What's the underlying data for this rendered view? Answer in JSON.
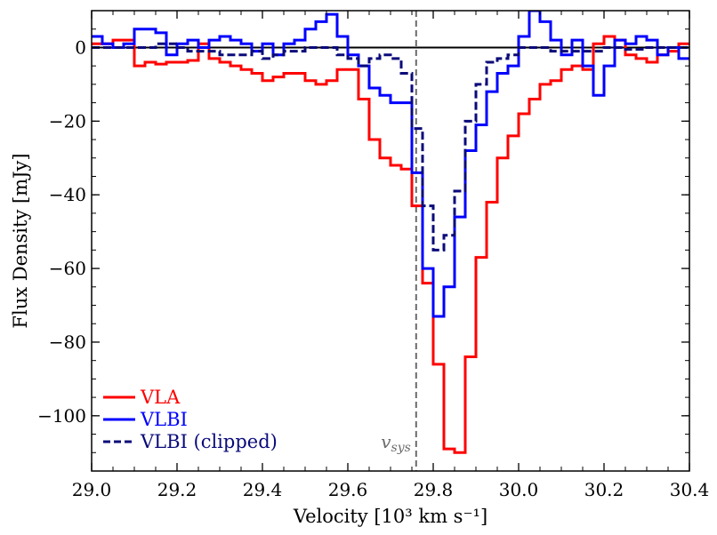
{
  "chart_data": {
    "type": "line",
    "style": "step",
    "title": "",
    "xlabel": "Velocity [10³ km s⁻¹]",
    "ylabel": "Flux Density [mJy]",
    "xlim": [
      29.0,
      30.4
    ],
    "ylim": [
      -115,
      10
    ],
    "xticks": [
      29.0,
      29.2,
      29.4,
      29.6,
      29.8,
      30.0,
      30.2,
      30.4
    ],
    "xtick_labels": [
      "29.0",
      "29.2",
      "29.4",
      "29.6",
      "29.8",
      "30.0",
      "30.2",
      "30.4"
    ],
    "yticks": [
      0,
      -20,
      -40,
      -60,
      -80,
      -100
    ],
    "ytick_labels": [
      "0",
      "−20",
      "−40",
      "−60",
      "−80",
      "−100"
    ],
    "zero_line": 0,
    "vsys": {
      "x": 29.76,
      "label": "v",
      "subscript": "sys",
      "color": "#6b6b6b"
    },
    "legend_position": "lower-left",
    "series": [
      {
        "name": "VLA",
        "color": "#ff0000",
        "dash": "solid",
        "edges": [
          29.0,
          29.05,
          29.1,
          29.125,
          29.15,
          29.175,
          29.2,
          29.225,
          29.25,
          29.275,
          29.3,
          29.325,
          29.35,
          29.375,
          29.4,
          29.425,
          29.45,
          29.475,
          29.5,
          29.525,
          29.55,
          29.575,
          29.6,
          29.625,
          29.65,
          29.675,
          29.7,
          29.725,
          29.75,
          29.775,
          29.8,
          29.825,
          29.85,
          29.875,
          29.9,
          29.925,
          29.95,
          29.975,
          30.0,
          30.025,
          30.05,
          30.075,
          30.1,
          30.125,
          30.15,
          30.175,
          30.2,
          30.225,
          30.25,
          30.275,
          30.3,
          30.325,
          30.35,
          30.375,
          30.4
        ],
        "values": [
          1,
          2,
          -5,
          -4,
          -4.5,
          -4,
          -4,
          -3.5,
          1,
          -3,
          -4,
          -5,
          -6,
          -7,
          -9,
          -8,
          -7,
          -7,
          -9,
          -10,
          -9,
          -6,
          -6,
          -14,
          -25,
          -30,
          -32,
          -33,
          -43,
          -64,
          -86,
          -109,
          -110,
          -84,
          -57,
          -42,
          -30,
          -24,
          -18,
          -14,
          -10,
          -9,
          -6,
          -5,
          -6,
          1,
          3,
          2,
          -2,
          -3,
          -4,
          -2,
          -1,
          1
        ]
      },
      {
        "name": "VLBI",
        "color": "#0000ff",
        "dash": "solid",
        "edges": [
          29.0,
          29.025,
          29.05,
          29.075,
          29.1,
          29.15,
          29.175,
          29.2,
          29.225,
          29.25,
          29.275,
          29.3,
          29.325,
          29.35,
          29.375,
          29.4,
          29.425,
          29.45,
          29.475,
          29.5,
          29.525,
          29.55,
          29.575,
          29.6,
          29.625,
          29.65,
          29.675,
          29.7,
          29.725,
          29.75,
          29.775,
          29.8,
          29.825,
          29.85,
          29.875,
          29.9,
          29.925,
          29.95,
          29.975,
          30.0,
          30.025,
          30.05,
          30.075,
          30.1,
          30.125,
          30.15,
          30.175,
          30.2,
          30.225,
          30.25,
          30.275,
          30.3,
          30.325,
          30.35,
          30.375,
          30.4
        ],
        "values": [
          3,
          1,
          0,
          1,
          5,
          4,
          -2,
          1,
          2,
          0,
          2,
          3,
          2,
          1,
          -1,
          1,
          -2,
          1,
          2,
          5,
          7,
          9,
          3,
          -2,
          -5,
          -11,
          -13,
          -15,
          -15,
          -34,
          -60,
          -73,
          -65,
          -46,
          -28,
          -21,
          -12,
          -7,
          -5,
          3,
          10,
          7,
          2,
          -2,
          2,
          -5,
          -13,
          -5,
          2,
          1,
          3,
          2,
          -2,
          0,
          -3
        ]
      },
      {
        "name": "VLBI (clipped)",
        "color": "#0a0a7a",
        "dash": "dashed",
        "edges": [
          29.0,
          29.15,
          29.2,
          29.225,
          29.25,
          29.275,
          29.3,
          29.325,
          29.35,
          29.375,
          29.4,
          29.425,
          29.45,
          29.475,
          29.5,
          29.525,
          29.55,
          29.575,
          29.6,
          29.625,
          29.65,
          29.675,
          29.7,
          29.725,
          29.75,
          29.775,
          29.8,
          29.825,
          29.85,
          29.875,
          29.9,
          29.925,
          29.95,
          29.975,
          30.0,
          30.025,
          30.05,
          30.075,
          30.1,
          30.15,
          30.2,
          30.25,
          30.3,
          30.35,
          30.4
        ],
        "values": [
          0,
          1,
          0,
          -1,
          -1,
          -1,
          -2,
          -2,
          -2,
          -1,
          -3,
          -2,
          -1,
          -1,
          0,
          0,
          0,
          -2,
          -3,
          -5,
          -3,
          -2,
          -3,
          -7,
          -22,
          -43,
          -55,
          -51,
          -39,
          -20,
          -10,
          -4,
          -3,
          -2,
          0,
          0,
          0,
          -1,
          -1,
          -1,
          0,
          -0.5,
          0,
          0
        ]
      }
    ]
  }
}
